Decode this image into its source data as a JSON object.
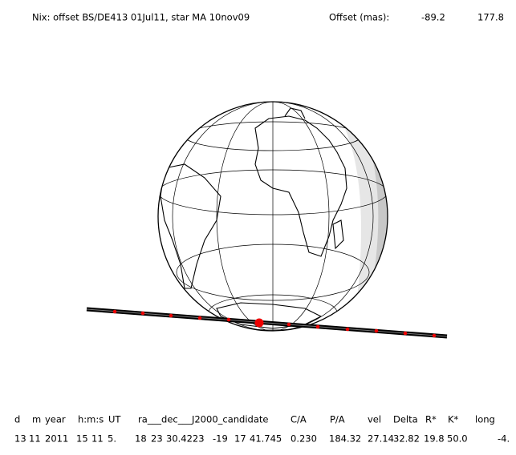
{
  "header": {
    "title": "Nix: offset BS/DE413 01Jul11, star MA 10nov09",
    "offset_label": "Offset (mas):",
    "offset_values": [
      "-89.2",
      "177.8"
    ]
  },
  "table": {
    "columns": [
      "d",
      "m",
      "year",
      "h:m:s",
      "UT",
      "ra___dec___J2000_candidate",
      "C/A",
      "P/A",
      "vel",
      "Delta",
      "R*",
      "K*",
      "long"
    ],
    "rows": [
      [
        "13",
        "11",
        "2011",
        "15",
        "11",
        "5.",
        "18",
        "23",
        "30.4223",
        "-19",
        "17",
        "41.745",
        "0.230",
        "184.32",
        "27.14",
        "32.82",
        "19.8",
        "50.0",
        "-4."
      ]
    ]
  }
}
